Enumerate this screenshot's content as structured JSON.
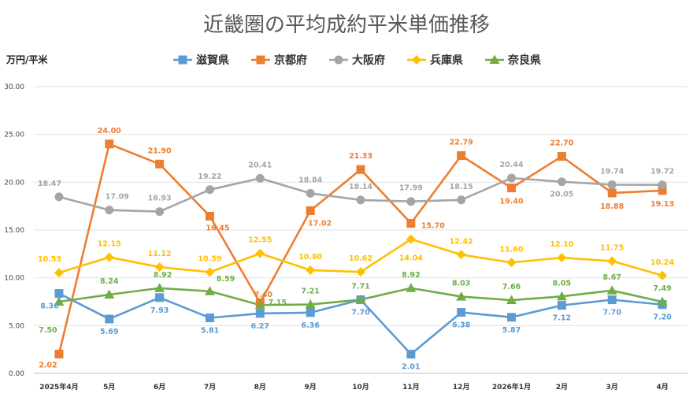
{
  "chart_data": {
    "type": "line",
    "title": "近畿圏の平均成約平米単価推移",
    "ylabel": "万円/平米",
    "ylim": [
      0,
      30
    ],
    "yticks": [
      "0.00",
      "5.00",
      "10.00",
      "15.00",
      "20.00",
      "25.00",
      "30.00"
    ],
    "grid": true,
    "legend_position": "top",
    "categories": [
      "2025年4月",
      "5月",
      "6月",
      "7月",
      "8月",
      "9月",
      "10月",
      "11月",
      "12月",
      "2026年1月",
      "2月",
      "3月",
      "4月"
    ],
    "series": [
      {
        "name": "滋賀県",
        "color": "#5b9bd5",
        "marker": "square",
        "values": [
          8.36,
          5.69,
          7.93,
          5.81,
          6.27,
          6.36,
          7.7,
          2.01,
          6.38,
          5.87,
          7.12,
          7.7,
          7.2
        ],
        "labels": [
          "8.36",
          "5.69",
          "7.93",
          "5.81",
          "6.27",
          "6.36",
          "7.70",
          "2.01",
          "6.38",
          "5.87",
          "7.12",
          "7.70",
          "7.20"
        ]
      },
      {
        "name": "京都府",
        "color": "#ed7d31",
        "marker": "square",
        "values": [
          2.02,
          24.0,
          21.9,
          16.45,
          7.4,
          17.02,
          21.33,
          15.7,
          22.79,
          19.4,
          22.7,
          18.88,
          19.13
        ],
        "labels": [
          "2.02",
          "24.00",
          "21.90",
          "16.45",
          "7.40",
          "17.02",
          "21.33",
          "15.70",
          "22.79",
          "19.40",
          "22.70",
          "18.88",
          "19.13"
        ]
      },
      {
        "name": "大阪府",
        "color": "#a5a5a5",
        "marker": "circle",
        "values": [
          18.47,
          17.09,
          16.93,
          19.22,
          20.41,
          18.84,
          18.14,
          17.99,
          18.15,
          20.44,
          20.05,
          19.74,
          19.72
        ],
        "labels": [
          "18.47",
          "17.09",
          "16.93",
          "19.22",
          "20.41",
          "18.84",
          "18.14",
          "17.99",
          "18.15",
          "20.44",
          "20.05",
          "19.74",
          "19.72"
        ]
      },
      {
        "name": "兵庫県",
        "color": "#ffc000",
        "marker": "diamond",
        "values": [
          10.53,
          12.15,
          11.12,
          10.59,
          12.55,
          10.8,
          10.62,
          14.04,
          12.42,
          11.6,
          12.1,
          11.75,
          10.24
        ],
        "labels": [
          "10.53",
          "12.15",
          "11.12",
          "10.59",
          "12.55",
          "10.80",
          "10.62",
          "14.04",
          "12.42",
          "11.60",
          "12.10",
          "11.75",
          "10.24"
        ]
      },
      {
        "name": "奈良県",
        "color": "#70ad47",
        "marker": "triangle",
        "values": [
          7.5,
          8.24,
          8.92,
          8.59,
          7.15,
          7.21,
          7.71,
          8.92,
          8.03,
          7.66,
          8.05,
          8.67,
          7.49
        ],
        "labels": [
          "7.50",
          "8.24",
          "8.92",
          "8.59",
          "7.15",
          "7.21",
          "7.71",
          "8.92",
          "8.03",
          "7.66",
          "8.05",
          "8.67",
          "7.49"
        ]
      }
    ]
  }
}
